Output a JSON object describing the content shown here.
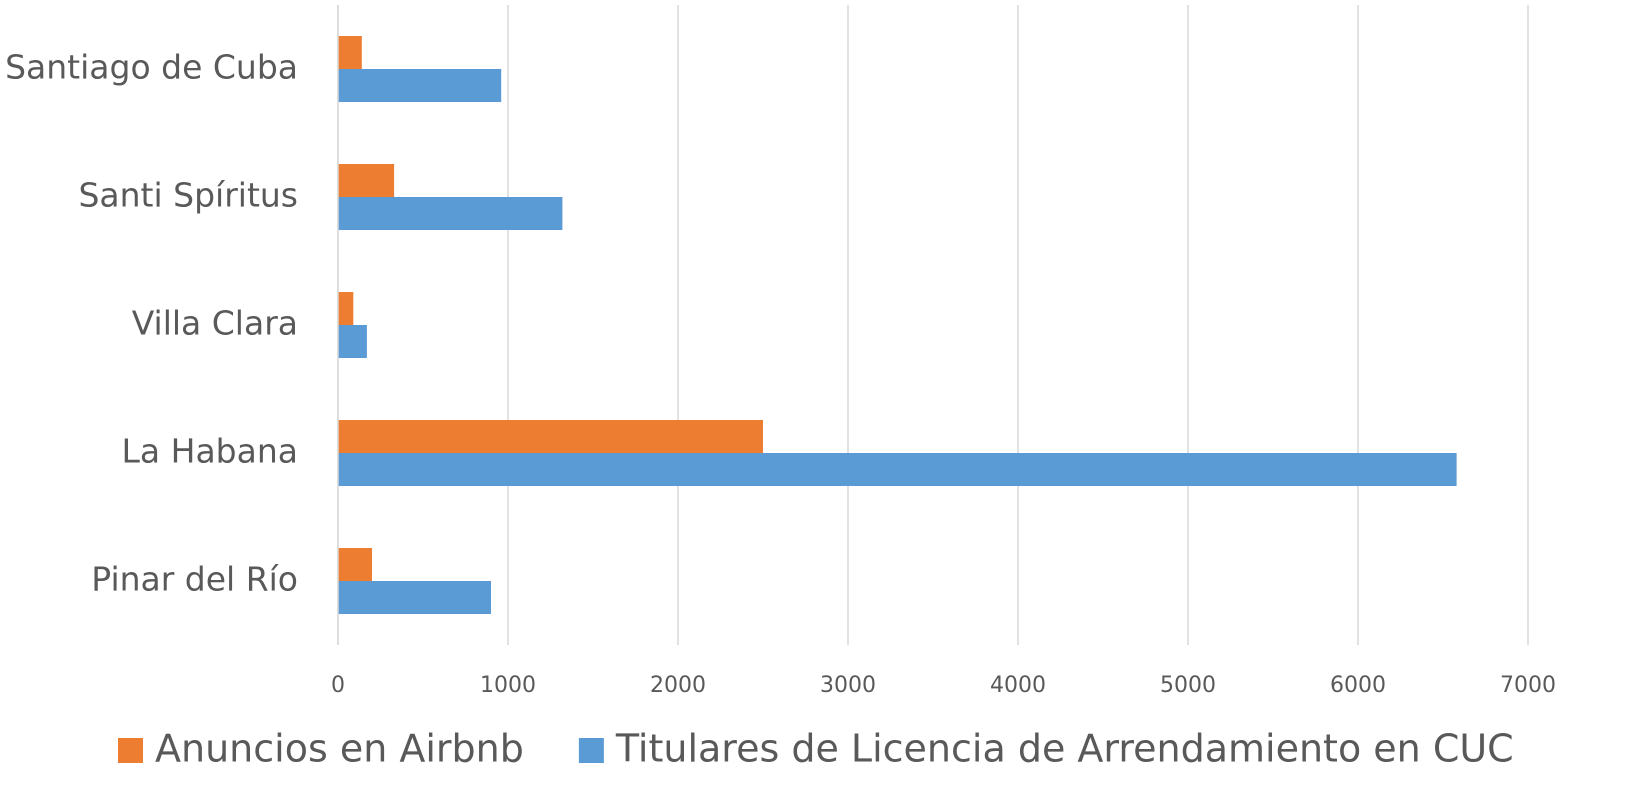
{
  "chart_data": {
    "type": "hbar",
    "categories": [
      "Pinar del Río",
      "La Habana",
      "Villa Clara",
      "Santi Spíritus",
      "Santiago de Cuba"
    ],
    "series": [
      {
        "name": "Anuncios en Airbnb",
        "color": "#ed7d31",
        "values": [
          200,
          2500,
          90,
          330,
          140
        ]
      },
      {
        "name": "Titulares de Licencia de Arrendamiento en CUC",
        "color": "#5b9bd5",
        "values": [
          900,
          6580,
          170,
          1320,
          960
        ]
      }
    ],
    "xlim": [
      0,
      7000
    ],
    "xticks": [
      0,
      1000,
      2000,
      3000,
      4000,
      5000,
      6000,
      7000
    ],
    "grid": true,
    "legend": "bottom"
  }
}
